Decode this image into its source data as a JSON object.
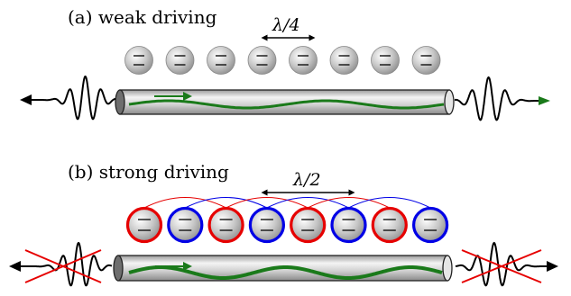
{
  "panel_a": {
    "label": "(a) weak driving",
    "spacing_label": "λ/4",
    "atom_count": 8,
    "atom_colors": [
      "#bfbfbf",
      "#bfbfbf",
      "#bfbfbf",
      "#bfbfbf",
      "#bfbfbf",
      "#bfbfbf",
      "#bfbfbf",
      "#bfbfbf"
    ]
  },
  "panel_b": {
    "label": "(b) strong driving",
    "spacing_label": "λ/2",
    "atom_count": 8,
    "atom_colors": [
      "#e60000",
      "#0000e6",
      "#e60000",
      "#0000e6",
      "#e60000",
      "#0000e6",
      "#e60000",
      "#0000e6"
    ]
  },
  "colors": {
    "waveguide_wave": "#1a7a1a",
    "red_ring": "#e60000",
    "blue_ring": "#0000e6",
    "cross": "#e60000",
    "atom_fill": "#bfbfbf"
  }
}
